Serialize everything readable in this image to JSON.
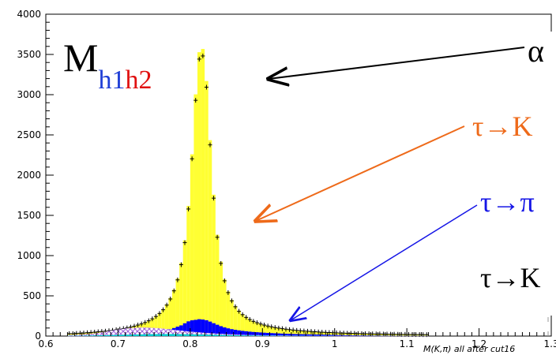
{
  "chart_data": {
    "type": "bar",
    "xlabel": "M(K,π) all after cut16",
    "x_ticks": [
      "0.6",
      "0.7",
      "0.8",
      "0.9",
      "1",
      "1.1",
      "1.2",
      "1.3"
    ],
    "y_ticks": [
      "0",
      "500",
      "1000",
      "1500",
      "2000",
      "2500",
      "3000",
      "3500",
      "4000"
    ],
    "xlim": [
      0.6,
      1.3
    ],
    "ylim": [
      0,
      4000
    ],
    "bin_width": 0.005,
    "bin_centers": [
      0.6325,
      0.6375,
      0.6425,
      0.6475,
      0.6525,
      0.6575,
      0.6625,
      0.6675,
      0.6725,
      0.6775,
      0.6825,
      0.6875,
      0.6925,
      0.6975,
      0.7025,
      0.7075,
      0.7125,
      0.7175,
      0.7225,
      0.7275,
      0.7325,
      0.7375,
      0.7425,
      0.7475,
      0.7525,
      0.7575,
      0.7625,
      0.7675,
      0.7725,
      0.7775,
      0.7825,
      0.7875,
      0.7925,
      0.7975,
      0.8025,
      0.8075,
      0.8125,
      0.8175,
      0.8225,
      0.8275,
      0.8325,
      0.8375,
      0.8425,
      0.8475,
      0.8525,
      0.8575,
      0.8625,
      0.8675,
      0.8725,
      0.8775,
      0.8825,
      0.8875,
      0.8925,
      0.8975,
      0.9025,
      0.9075,
      0.9125,
      0.9175,
      0.9225,
      0.9275,
      0.9325,
      0.9375,
      0.9425,
      0.9475,
      0.9525,
      0.9575,
      0.9625,
      0.9675,
      0.9725,
      0.9775,
      0.9825,
      0.9875,
      0.9925,
      0.9975,
      1.0025,
      1.0075,
      1.0125,
      1.0175,
      1.0225,
      1.0275,
      1.0325,
      1.0375,
      1.0425,
      1.0475,
      1.0525,
      1.0575,
      1.0625,
      1.0675,
      1.0725,
      1.0775,
      1.0825,
      1.0875,
      1.0925,
      1.0975,
      1.1025,
      1.1075,
      1.1125,
      1.1175,
      1.1225,
      1.1275,
      1.1325,
      1.1375,
      1.1425,
      1.1475,
      1.1525,
      1.1575,
      1.1625,
      1.1675,
      1.1725,
      1.1775,
      1.1825,
      1.1875,
      1.1925,
      1.1975,
      1.2025,
      1.2075,
      1.2125,
      1.2175,
      1.2225,
      1.2275,
      1.2325,
      1.2375,
      1.2425,
      1.2475,
      1.2525,
      1.2575,
      1.2625,
      1.2675,
      1.2725,
      1.2775,
      1.2825,
      1.2875,
      1.2925,
      1.2975
    ],
    "series": [
      {
        "color": "#ffff33",
        "style": "filled-histogram",
        "values": [
          31,
          31,
          34,
          37,
          39,
          43,
          46,
          50,
          54,
          58,
          62,
          68,
          73,
          80,
          87,
          95,
          104,
          114,
          126,
          140,
          155,
          173,
          194,
          220,
          250,
          288,
          335,
          395,
          473,
          576,
          715,
          909,
          1190,
          1618,
          2259,
          3004,
          3528,
          3568,
          3170,
          2435,
          1757,
          1259,
          925,
          704,
          554,
          449,
          373,
          316,
          273,
          238,
          211,
          188,
          170,
          154,
          140,
          128,
          118,
          109,
          101,
          94,
          88,
          82,
          77,
          72,
          68,
          64,
          61,
          58,
          55,
          52,
          49,
          47,
          45,
          43,
          41,
          39,
          38,
          36,
          35,
          34,
          32,
          31,
          30,
          29,
          28,
          27,
          27,
          26,
          25,
          24,
          24,
          23,
          22,
          22,
          21,
          21,
          20,
          20,
          19,
          19
        ]
      },
      {
        "color": "#000000",
        "style": "data-points",
        "values": [
          30,
          30,
          33,
          36,
          38,
          42,
          45,
          49,
          53,
          57,
          61,
          66,
          71,
          78,
          85,
          93,
          101,
          111,
          123,
          137,
          151,
          169,
          190,
          214,
          244,
          281,
          327,
          385,
          461,
          562,
          698,
          887,
          1161,
          1579,
          2203,
          2930,
          3442,
          3481,
          3093,
          2376,
          1714,
          1228,
          903,
          687,
          540,
          438,
          364,
          308,
          266,
          232,
          206,
          183,
          166,
          150,
          137,
          125,
          115,
          106,
          99,
          92,
          86,
          80,
          75,
          70,
          66,
          63,
          60,
          57,
          54,
          51,
          48,
          46,
          44,
          42,
          40,
          38,
          37,
          35,
          34,
          33,
          31,
          30,
          29,
          28,
          27,
          26,
          26,
          25,
          24,
          23,
          23,
          22,
          21,
          21,
          20,
          20,
          19,
          19,
          18,
          18
        ]
      },
      {
        "color": "#0000ff",
        "style": "filled-histogram",
        "values": [
          5,
          6,
          6,
          7,
          8,
          8,
          9,
          10,
          11,
          12,
          13,
          14,
          16,
          18,
          20,
          22,
          24,
          26,
          29,
          32,
          35,
          38,
          42,
          46,
          51,
          57,
          65,
          74,
          86,
          100,
          117,
          133,
          159,
          183,
          196,
          202,
          210,
          206,
          197,
          180,
          160,
          141,
          123,
          108,
          96,
          86,
          78,
          71,
          65,
          60,
          55,
          51,
          48,
          45,
          42,
          39,
          37,
          35,
          33,
          31,
          29,
          28,
          26,
          25,
          24,
          23,
          22,
          21,
          20,
          19,
          18,
          17,
          16,
          15,
          14,
          13,
          12,
          11,
          10,
          10,
          9,
          9,
          8,
          8,
          7,
          7,
          7,
          6,
          6,
          6,
          5,
          5,
          5,
          4,
          4,
          4,
          3,
          3,
          3,
          3
        ]
      },
      {
        "color": "#cc99ff",
        "style": "hatched-histogram",
        "values": [
          12,
          13,
          15,
          17,
          20,
          23,
          27,
          32,
          38,
          45,
          52,
          60,
          68,
          76,
          83,
          89,
          94,
          98,
          101,
          103,
          104,
          104,
          103,
          101,
          98,
          95,
          91,
          87,
          82,
          77,
          72,
          67,
          62,
          57,
          53,
          49,
          45,
          41,
          38,
          35,
          32,
          29,
          27,
          25,
          23,
          21,
          19,
          17,
          15,
          14,
          13,
          12,
          11,
          10,
          9,
          8,
          8,
          7,
          7,
          6,
          6,
          5,
          5,
          5,
          4,
          4,
          4,
          4,
          3,
          3,
          3,
          3,
          3,
          2,
          2,
          2,
          2,
          2,
          2,
          2,
          2,
          2,
          1,
          1,
          1,
          1,
          1,
          1,
          1,
          1,
          1,
          1,
          1,
          1,
          1,
          1,
          1,
          1,
          1,
          1
        ]
      },
      {
        "color": "#00cccc",
        "style": "filled-histogram",
        "values": [
          3,
          3,
          4,
          4,
          5,
          6,
          7,
          8,
          9,
          10,
          11,
          12,
          13,
          14,
          15,
          16,
          17,
          18,
          19,
          20,
          21,
          22,
          23,
          24,
          24,
          25,
          25,
          25,
          25,
          25,
          24,
          24,
          23,
          23,
          22,
          21,
          20,
          19,
          18,
          17,
          16,
          15,
          14,
          13,
          12,
          11,
          10,
          10,
          9,
          8,
          8,
          7,
          7,
          6,
          6,
          5,
          5,
          5,
          4,
          4,
          4,
          3,
          3,
          3,
          3,
          3,
          2,
          2,
          2,
          2,
          2,
          2,
          2,
          2,
          1,
          1,
          1,
          1,
          1,
          1,
          1,
          1,
          1,
          1,
          1,
          1,
          1,
          1,
          1,
          1,
          1,
          1,
          1,
          1,
          1,
          1,
          1,
          1,
          1,
          1
        ]
      }
    ]
  },
  "annotations": {
    "title_main": "M",
    "title_sub_h1": "h1",
    "title_sub_h2": "h2",
    "label_top": "α",
    "label_orange": "τ→K",
    "label_blue": "τ→π",
    "label_black": "τ→K",
    "color_title_main": "#000000",
    "color_h1": "#1f3fd6",
    "color_h2": "#e01010",
    "color_orange": "#ee6a1a",
    "color_blue": "#1515e6",
    "color_black": "#000000"
  }
}
